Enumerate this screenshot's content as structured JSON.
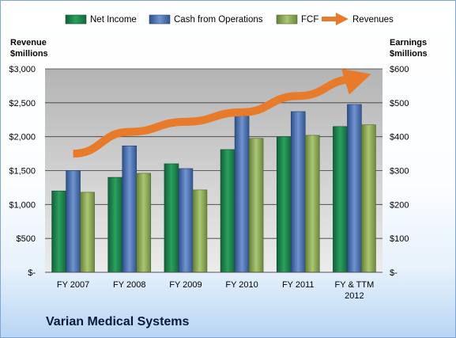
{
  "chart_data": {
    "type": "bar",
    "title": "Varian Medical Systems",
    "categories": [
      "FY 2007",
      "FY 2008",
      "FY 2009",
      "FY 2010",
      "FY 2011",
      "FY & TTM 2012"
    ],
    "category_lines": [
      [
        "FY 2007"
      ],
      [
        "FY 2008"
      ],
      [
        "FY 2009"
      ],
      [
        "FY 2010"
      ],
      [
        "FY 2011"
      ],
      [
        "FY & TTM",
        "2012"
      ]
    ],
    "series": [
      {
        "name": "Net Income",
        "axis": "right",
        "color": "#1f8a4c",
        "values": [
          240,
          280,
          320,
          362,
          400,
          430
        ]
      },
      {
        "name": "Cash from Operations",
        "axis": "right",
        "color": "#4a73b5",
        "values": [
          300,
          373,
          306,
          461,
          474,
          495
        ]
      },
      {
        "name": "FCF",
        "axis": "right",
        "color": "#8fae4e",
        "values": [
          236,
          292,
          243,
          395,
          404,
          435
        ]
      }
    ],
    "line_series": {
      "name": "Revenues",
      "axis": "left",
      "color": "#e87b2a",
      "style": "arrow",
      "values": [
        1750,
        2070,
        2220,
        2360,
        2600,
        2850
      ]
    },
    "left_axis": {
      "title_lines": [
        "Revenue",
        "$millions"
      ],
      "ylim": [
        0,
        3000
      ],
      "ticks": [
        0,
        500,
        1000,
        1500,
        2000,
        2500,
        3000
      ],
      "tick_labels": [
        "$-",
        "$500",
        "$1,000",
        "$1,500",
        "$2,000",
        "$2,500",
        "$3,000"
      ]
    },
    "right_axis": {
      "title_lines": [
        "Earnings",
        "$millions"
      ],
      "ylim": [
        0,
        600
      ],
      "ticks": [
        0,
        100,
        200,
        300,
        400,
        500,
        600
      ],
      "tick_labels": [
        "$-",
        "$100",
        "$200",
        "$300",
        "$400",
        "$500",
        "$600"
      ]
    },
    "legend": {
      "placement": "top",
      "items": [
        "Net Income",
        "Cash from Operations",
        "FCF",
        "Revenues"
      ]
    },
    "grid": true
  }
}
